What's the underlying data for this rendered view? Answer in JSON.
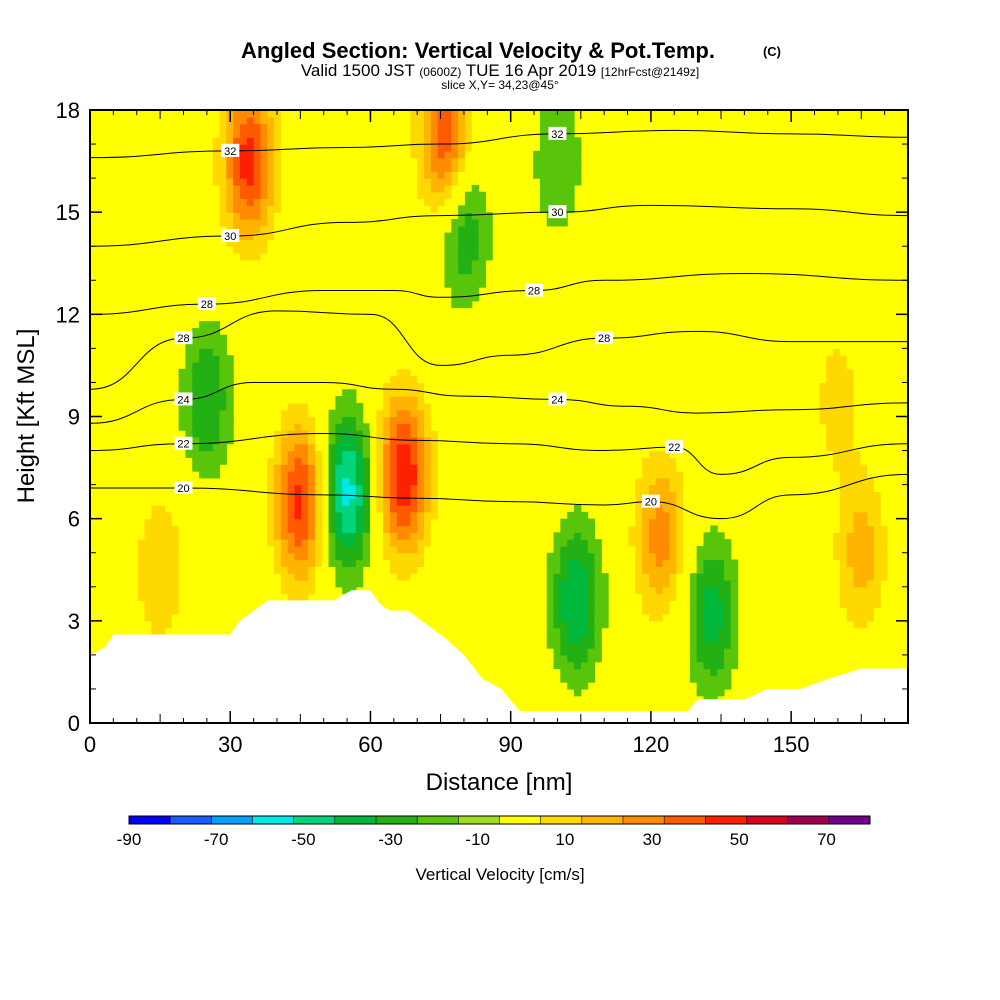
{
  "chart_data": {
    "type": "heatmap",
    "title": "Angled Section: Vertical Velocity & Pot.Temp.",
    "title_tag": "(C)",
    "subtitle_parts": [
      "Valid 1500 JST",
      "(0600Z)",
      "TUE 16 Apr 2019",
      "[12hrFcst@2149z]"
    ],
    "slice_text": "slice X,Y= 34,23@45°",
    "xlabel": "Distance [nm]",
    "ylabel": "Height [Kft MSL]",
    "xlim": [
      0,
      175
    ],
    "ylim": [
      0,
      18
    ],
    "xticks": [
      0,
      30,
      60,
      90,
      120,
      150
    ],
    "yticks": [
      0,
      3,
      6,
      9,
      12,
      15,
      18
    ],
    "colorbar": {
      "label": "Vertical Velocity [cm/s]",
      "bounds": [
        -90,
        80
      ],
      "step": 10,
      "tick_labels": [
        -90,
        -70,
        -50,
        -30,
        -10,
        10,
        30,
        50,
        70
      ],
      "colors": [
        "#0000ff",
        "#1e5bff",
        "#00a0ff",
        "#00e8e8",
        "#00d47c",
        "#00b83c",
        "#22b014",
        "#58c40a",
        "#a0dc1e",
        "#ffff00",
        "#ffd800",
        "#ffb400",
        "#ff8c00",
        "#ff5a00",
        "#ff2000",
        "#d80020",
        "#a00050",
        "#700090"
      ]
    },
    "terrain": [
      [
        0,
        2
      ],
      [
        3,
        2.2
      ],
      [
        5,
        2.6
      ],
      [
        30,
        2.6
      ],
      [
        32,
        3
      ],
      [
        35,
        3.3
      ],
      [
        38,
        3.6
      ],
      [
        52,
        3.6
      ],
      [
        56,
        3.9
      ],
      [
        60,
        3.9
      ],
      [
        62,
        3.5
      ],
      [
        64,
        3.3
      ],
      [
        68,
        3.3
      ],
      [
        72,
        2.9
      ],
      [
        76,
        2.5
      ],
      [
        80,
        2.0
      ],
      [
        84,
        1.3
      ],
      [
        88,
        1.0
      ],
      [
        92,
        0.35
      ],
      [
        128,
        0.35
      ],
      [
        130,
        0.7
      ],
      [
        140,
        0.7
      ],
      [
        145,
        1.0
      ],
      [
        152,
        1.0
      ],
      [
        158,
        1.3
      ],
      [
        165,
        1.6
      ],
      [
        175,
        1.6
      ]
    ],
    "velocity_features": [
      {
        "x": 34,
        "z": 16.5,
        "peak": 55
      },
      {
        "x": 76,
        "z": 17.2,
        "peak": 50
      },
      {
        "x": 45,
        "z": 6.5,
        "peak": 55
      },
      {
        "x": 67,
        "z": 7.3,
        "peak": 60
      },
      {
        "x": 55,
        "z": 6.8,
        "peak": -55
      },
      {
        "x": 104,
        "z": 3.6,
        "peak": -40
      },
      {
        "x": 133,
        "z": 3.2,
        "peak": -35
      },
      {
        "x": 25,
        "z": 9.5,
        "peak": -30
      },
      {
        "x": 80,
        "z": 14.5,
        "peak": -30
      },
      {
        "x": 100,
        "z": 16.5,
        "peak": -20
      },
      {
        "x": 122,
        "z": 5.5,
        "peak": 35
      },
      {
        "x": 165,
        "z": 5.0,
        "peak": 25
      },
      {
        "x": 15,
        "z": 4.5,
        "peak": 20
      },
      {
        "x": 160,
        "z": 9.5,
        "peak": 15
      }
    ],
    "theta_contours": [
      {
        "label": "20",
        "points": [
          [
            0,
            6.9
          ],
          [
            20,
            6.9
          ],
          [
            50,
            6.7
          ],
          [
            70,
            6.6
          ],
          [
            90,
            6.5
          ],
          [
            110,
            6.4
          ],
          [
            120,
            6.5
          ],
          [
            135,
            6.0
          ],
          [
            150,
            6.7
          ],
          [
            175,
            7.3
          ]
        ]
      },
      {
        "label": "22",
        "points": [
          [
            0,
            8.0
          ],
          [
            20,
            8.2
          ],
          [
            50,
            8.5
          ],
          [
            70,
            8.3
          ],
          [
            90,
            8.2
          ],
          [
            110,
            8.0
          ],
          [
            125,
            8.1
          ],
          [
            135,
            7.3
          ],
          [
            150,
            7.8
          ],
          [
            175,
            8.2
          ]
        ]
      },
      {
        "label": "24",
        "points": [
          [
            0,
            8.8
          ],
          [
            20,
            9.5
          ],
          [
            35,
            10.0
          ],
          [
            50,
            10.0
          ],
          [
            65,
            9.8
          ],
          [
            80,
            9.6
          ],
          [
            100,
            9.5
          ],
          [
            115,
            9.3
          ],
          [
            130,
            9.1
          ],
          [
            150,
            9.2
          ],
          [
            175,
            9.4
          ]
        ]
      },
      {
        "label": "28",
        "points": [
          [
            0,
            9.8
          ],
          [
            20,
            11.3
          ],
          [
            40,
            12.1
          ],
          [
            60,
            12.0
          ],
          [
            75,
            10.5
          ],
          [
            90,
            10.8
          ],
          [
            110,
            11.3
          ],
          [
            130,
            11.5
          ],
          [
            150,
            11.2
          ],
          [
            175,
            11.2
          ]
        ]
      },
      {
        "label": "28",
        "points": [
          [
            0,
            12.0
          ],
          [
            25,
            12.3
          ],
          [
            50,
            12.7
          ],
          [
            65,
            12.7
          ],
          [
            75,
            12.5
          ],
          [
            95,
            12.7
          ],
          [
            110,
            13.0
          ],
          [
            140,
            13.2
          ],
          [
            175,
            13.0
          ]
        ]
      },
      {
        "label": "30",
        "points": [
          [
            0,
            14.0
          ],
          [
            30,
            14.3
          ],
          [
            55,
            14.7
          ],
          [
            75,
            14.9
          ],
          [
            100,
            15.0
          ],
          [
            120,
            15.2
          ],
          [
            150,
            15.1
          ],
          [
            175,
            14.9
          ]
        ]
      },
      {
        "label": "32",
        "points": [
          [
            0,
            16.6
          ],
          [
            30,
            16.8
          ],
          [
            55,
            16.9
          ],
          [
            75,
            17.0
          ],
          [
            100,
            17.3
          ],
          [
            125,
            17.4
          ],
          [
            150,
            17.3
          ],
          [
            175,
            17.2
          ]
        ]
      }
    ]
  }
}
